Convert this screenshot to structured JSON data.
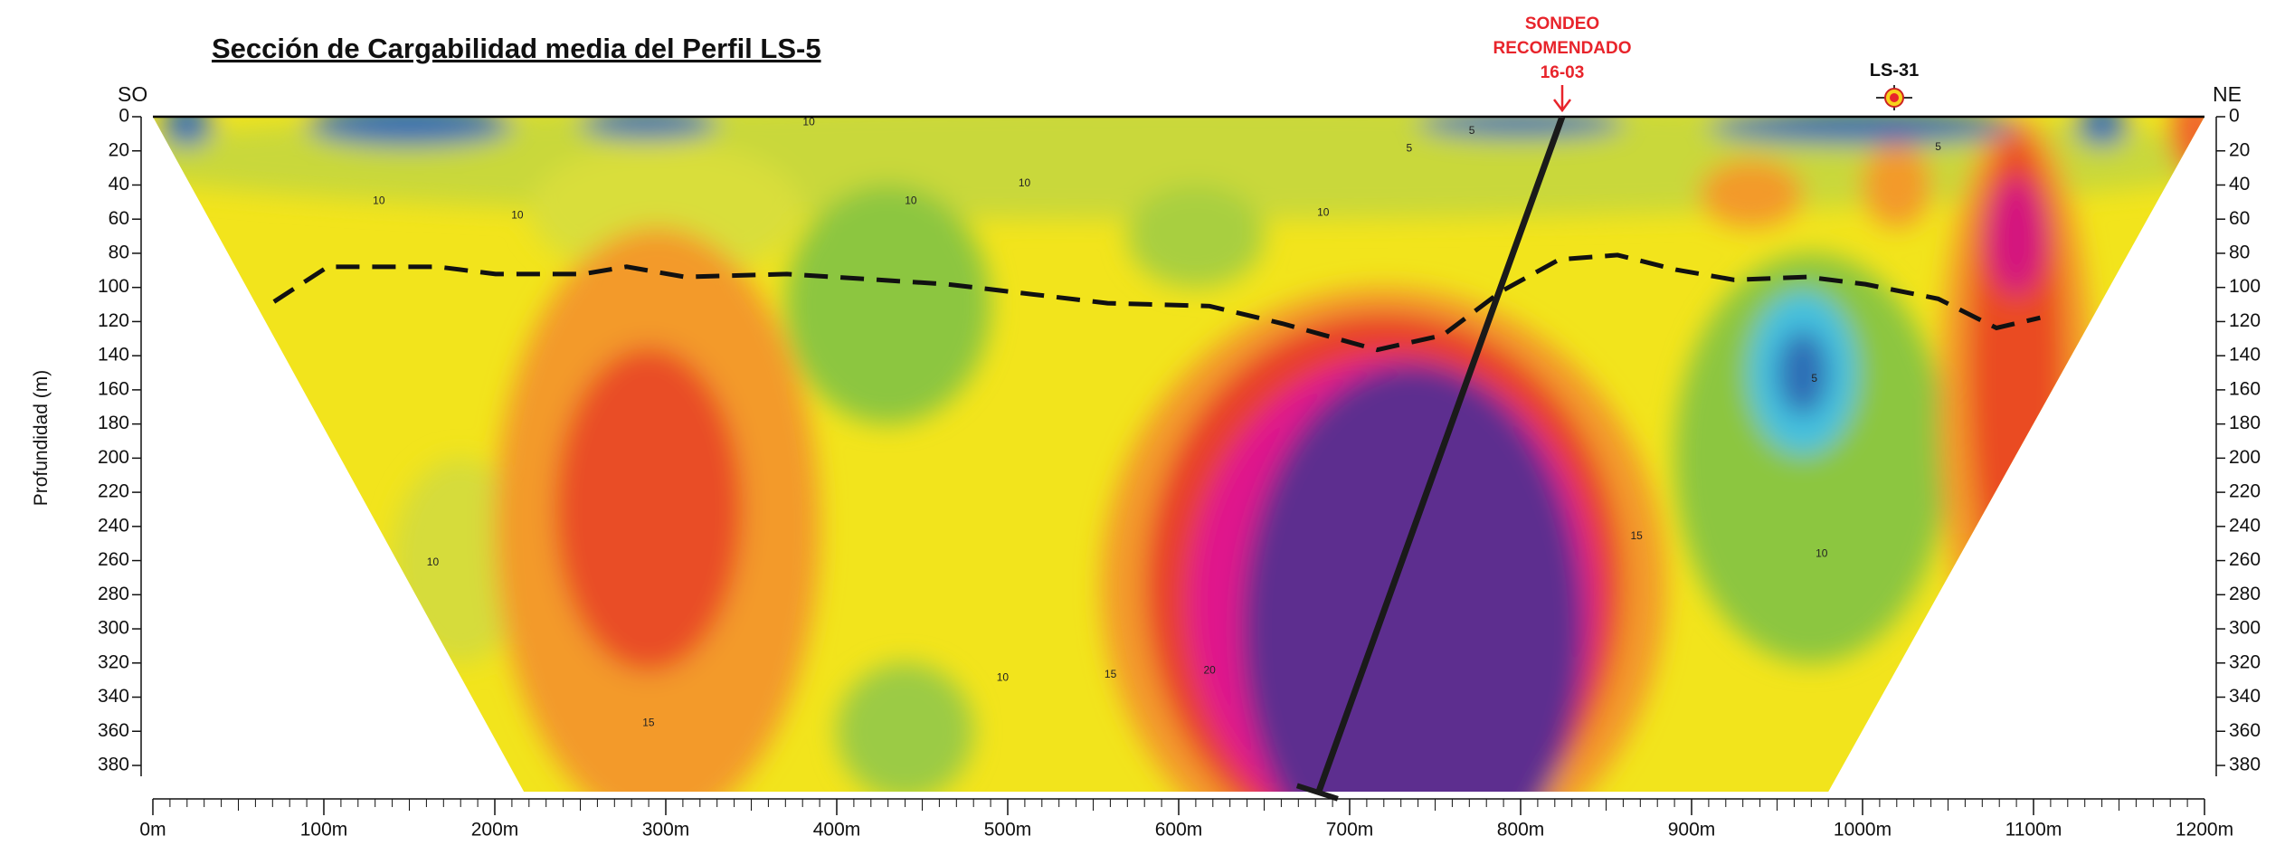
{
  "chart_data": {
    "type": "section",
    "title": "Sección de Cargabilidad media del Perfil LS-5",
    "ylabel": "Profundidad (m)",
    "left_label": "SO",
    "right_label": "NE",
    "annotations": {
      "sondeo": [
        "SONDEO",
        "RECOMENDADO",
        "16-03"
      ],
      "station": "LS-31"
    },
    "contour_labels": [
      10,
      10,
      10,
      10,
      10,
      10,
      5,
      5,
      5,
      10,
      15,
      10,
      15,
      20,
      15,
      10,
      5
    ],
    "xlim": [
      0,
      1200
    ],
    "xticks": [
      {
        "value": 0,
        "label": "0m"
      },
      {
        "value": 100,
        "label": "100m"
      },
      {
        "value": 200,
        "label": "200m"
      },
      {
        "value": 300,
        "label": "300m"
      },
      {
        "value": 400,
        "label": "400m"
      },
      {
        "value": 500,
        "label": "500m"
      },
      {
        "value": 600,
        "label": "600m"
      },
      {
        "value": 700,
        "label": "700m"
      },
      {
        "value": 800,
        "label": "800m"
      },
      {
        "value": 900,
        "label": "900m"
      },
      {
        "value": 1000,
        "label": "1000m"
      },
      {
        "value": 1100,
        "label": "1100m"
      },
      {
        "value": 1200,
        "label": "1200m"
      }
    ],
    "ylim": [
      0,
      380
    ],
    "yticks": [
      0,
      20,
      40,
      60,
      80,
      100,
      120,
      140,
      160,
      180,
      200,
      220,
      240,
      260,
      280,
      300,
      320,
      340,
      360,
      380
    ],
    "y_inverted": true
  }
}
